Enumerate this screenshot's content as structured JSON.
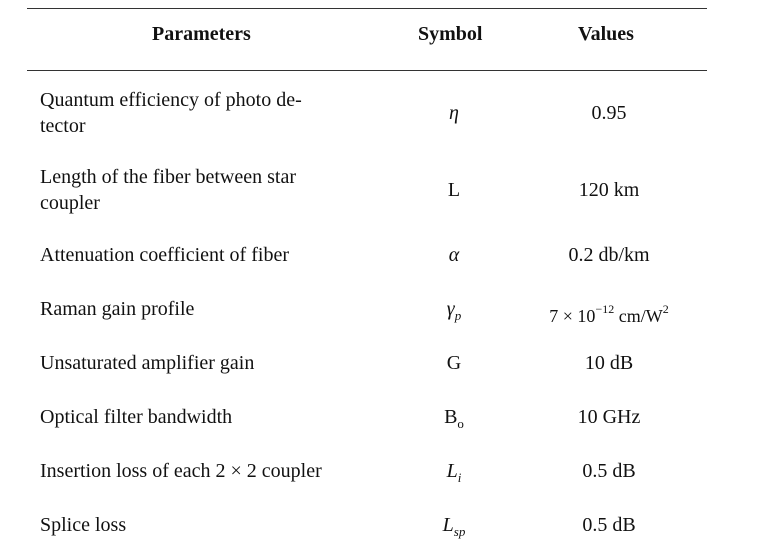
{
  "header": {
    "parameters": "Parameters",
    "symbol": "Symbol",
    "values": "Values"
  },
  "rows": [
    {
      "param_line1": "Quantum efficiency of photo de-",
      "param_line2": "tector",
      "symbol": "η",
      "value": "0.95"
    },
    {
      "param_line1": "Length of the fiber between star",
      "param_line2": "coupler",
      "symbol": "L",
      "value": "120 km"
    },
    {
      "param": "Attenuation coefficient of fiber",
      "symbol": "α",
      "value": "0.2 db/km"
    },
    {
      "param": "Raman gain profile",
      "symbol_base": "γ",
      "symbol_sub": "p",
      "value_base": "7 × 10",
      "value_exp": "−12",
      "value_unit": " cm/W",
      "value_unit_exp": "2"
    },
    {
      "param": "Unsaturated amplifier gain",
      "symbol": "G",
      "value": "10 dB"
    },
    {
      "param": "Optical filter bandwidth",
      "symbol_base": "B",
      "symbol_sub": "o",
      "value": "10 GHz"
    },
    {
      "param": "Insertion loss of each 2 × 2 coupler",
      "symbol_base": "L",
      "symbol_sub": "i",
      "value": "0.5 dB"
    },
    {
      "param": "Splice loss",
      "symbol_base": "L",
      "symbol_sub": "sp",
      "value": "0.5 dB"
    }
  ]
}
